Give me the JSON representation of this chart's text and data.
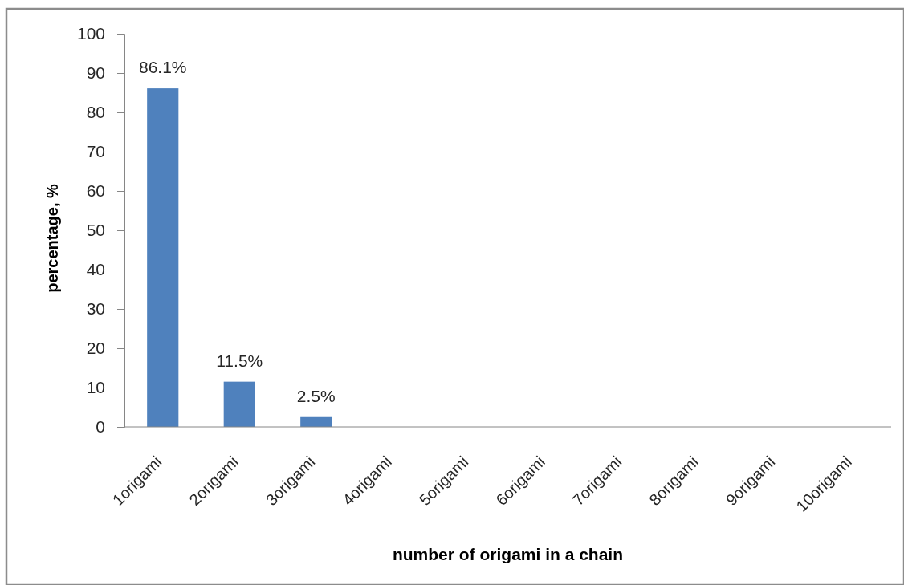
{
  "chart_data": {
    "type": "bar",
    "xlabel": "number of origami in a chain",
    "ylabel": "percentage, %",
    "categories": [
      "1origami",
      "2origami",
      "3origami",
      "4origami",
      "5origami",
      "6origami",
      "7origami",
      "8origami",
      "9origami",
      "10origami"
    ],
    "values": [
      86.1,
      11.5,
      2.5,
      0,
      0,
      0,
      0,
      0,
      0,
      0
    ],
    "value_labels": [
      "86.1%",
      "11.5%",
      "2.5%",
      null,
      null,
      null,
      null,
      null,
      null,
      null
    ],
    "color": "#4f81bd",
    "ylim": [
      0,
      100
    ],
    "yticks": [
      0,
      10,
      20,
      30,
      40,
      50,
      60,
      70,
      80,
      90,
      100
    ]
  }
}
